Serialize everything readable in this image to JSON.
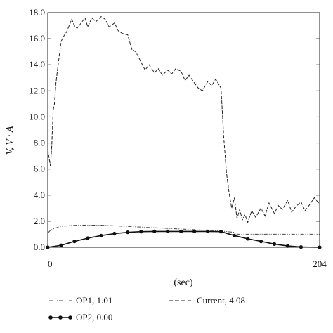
{
  "chart_data": {
    "type": "line",
    "title": "",
    "xlabel": "(sec)",
    "ylabel": "V, V · A",
    "xlim": [
      0,
      204
    ],
    "ylim": [
      0,
      18
    ],
    "x_ticks": [
      "0",
      "204"
    ],
    "y_ticks": [
      "0.0",
      "2.0",
      "4.0",
      "6.0",
      "8.0",
      "10.0",
      "12.0",
      "14.0",
      "16.0",
      "18.0"
    ],
    "grid": false,
    "legend_position": "bottom",
    "series": [
      {
        "name": "OP1, 1.01",
        "style": "dash-dot-dot",
        "color": "#444444",
        "x": [
          0,
          2,
          5,
          8,
          12,
          18,
          25,
          30,
          40,
          50,
          60,
          70,
          80,
          90,
          100,
          110,
          120,
          130,
          140,
          141,
          145,
          150,
          160,
          180,
          204
        ],
        "y": [
          1.1,
          1.3,
          1.45,
          1.55,
          1.62,
          1.68,
          1.7,
          1.7,
          1.7,
          1.65,
          1.6,
          1.55,
          1.5,
          1.45,
          1.4,
          1.35,
          1.3,
          1.25,
          1.15,
          1.0,
          1.0,
          1.0,
          1.0,
          1.0,
          1.0
        ]
      },
      {
        "name": "OP2, 0.00",
        "style": "marker-line",
        "color": "#111111",
        "x": [
          0,
          10,
          20,
          30,
          40,
          50,
          60,
          70,
          80,
          90,
          100,
          110,
          120,
          130,
          140,
          150,
          160,
          170,
          180,
          190,
          204
        ],
        "y": [
          0.0,
          0.15,
          0.45,
          0.7,
          0.9,
          1.05,
          1.15,
          1.2,
          1.22,
          1.22,
          1.22,
          1.22,
          1.22,
          1.2,
          0.9,
          0.65,
          0.45,
          0.25,
          0.1,
          0.02,
          0.0
        ]
      },
      {
        "name": "Current, 4.08",
        "style": "dashed",
        "color": "#222222",
        "x": [
          0,
          2,
          3,
          4,
          5,
          6,
          8,
          10,
          12,
          14,
          16,
          18,
          20,
          22,
          25,
          28,
          30,
          33,
          36,
          40,
          43,
          46,
          50,
          53,
          56,
          60,
          63,
          66,
          70,
          73,
          76,
          80,
          83,
          86,
          90,
          93,
          96,
          100,
          103,
          106,
          110,
          113,
          116,
          120,
          123,
          126,
          130,
          132,
          134,
          136,
          138,
          140,
          142,
          144,
          146,
          148,
          150,
          153,
          156,
          160,
          163,
          166,
          170,
          173,
          176,
          180,
          183,
          186,
          190,
          193,
          196,
          200,
          204
        ],
        "y": [
          7.5,
          6.2,
          7.8,
          10.5,
          11.0,
          12.5,
          14.2,
          15.8,
          16.2,
          16.5,
          17.0,
          17.5,
          17.0,
          16.8,
          17.2,
          17.6,
          16.9,
          17.6,
          17.3,
          17.7,
          17.5,
          16.9,
          17.2,
          16.6,
          16.4,
          16.3,
          15.2,
          15.0,
          14.2,
          13.6,
          14.0,
          13.4,
          13.7,
          13.2,
          13.6,
          13.3,
          13.7,
          13.5,
          12.8,
          13.2,
          12.6,
          12.2,
          12.0,
          12.7,
          12.4,
          12.9,
          12.2,
          8.5,
          5.8,
          4.2,
          3.0,
          3.8,
          2.2,
          2.9,
          2.1,
          2.5,
          1.9,
          2.8,
          2.3,
          3.0,
          2.4,
          3.4,
          2.6,
          3.2,
          2.9,
          3.6,
          2.7,
          3.1,
          3.5,
          2.8,
          3.2,
          3.8,
          3.3
        ]
      }
    ]
  }
}
